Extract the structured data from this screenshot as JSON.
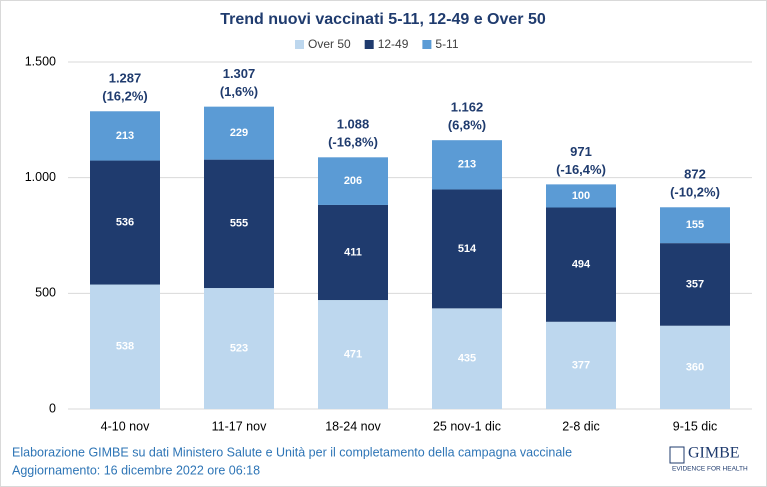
{
  "chart_data": {
    "type": "stacked_bar",
    "title": "Trend nuovi vaccinati 5-11, 12-49 e Over 50",
    "categories": [
      "4-10 nov",
      "11-17 nov",
      "18-24 nov",
      "25 nov-1 dic",
      "2-8 dic",
      "9-15 dic"
    ],
    "series": [
      {
        "name": "Over 50",
        "color": "#bdd7ee",
        "values": [
          538,
          523,
          471,
          435,
          377,
          360
        ]
      },
      {
        "name": "12-49",
        "color": "#1f3b6e",
        "values": [
          536,
          555,
          411,
          514,
          494,
          357
        ]
      },
      {
        "name": "5-11",
        "color": "#5b9bd5",
        "values": [
          213,
          229,
          206,
          213,
          100,
          155
        ]
      }
    ],
    "totals": {
      "values": [
        1287,
        1307,
        1088,
        1162,
        971,
        872
      ],
      "value_labels": [
        "1.287",
        "1.307",
        "1.088",
        "1.162",
        "971",
        "872"
      ]
    },
    "change_labels": [
      "(16,2%)",
      "(1,6%)",
      "(-16,8%)",
      "(6,8%)",
      "(-16,4%)",
      "(-10,2%)"
    ],
    "ylim": [
      0,
      1500
    ],
    "yticks": [
      0,
      500,
      {
        "value": 1000,
        "label": "1.000"
      },
      {
        "value": 1500,
        "label": "1.500"
      }
    ],
    "grid": true,
    "legend": "top",
    "source": "Elaborazione GIMBE su dati Ministero Salute e Unità per il completamento della campagna vaccinale",
    "updated": "Aggiornamento: 16 dicembre 2022 ore 06:18",
    "logo": {
      "name": "GIMBE",
      "tagline": "EVIDENCE FOR HEALTH"
    }
  }
}
